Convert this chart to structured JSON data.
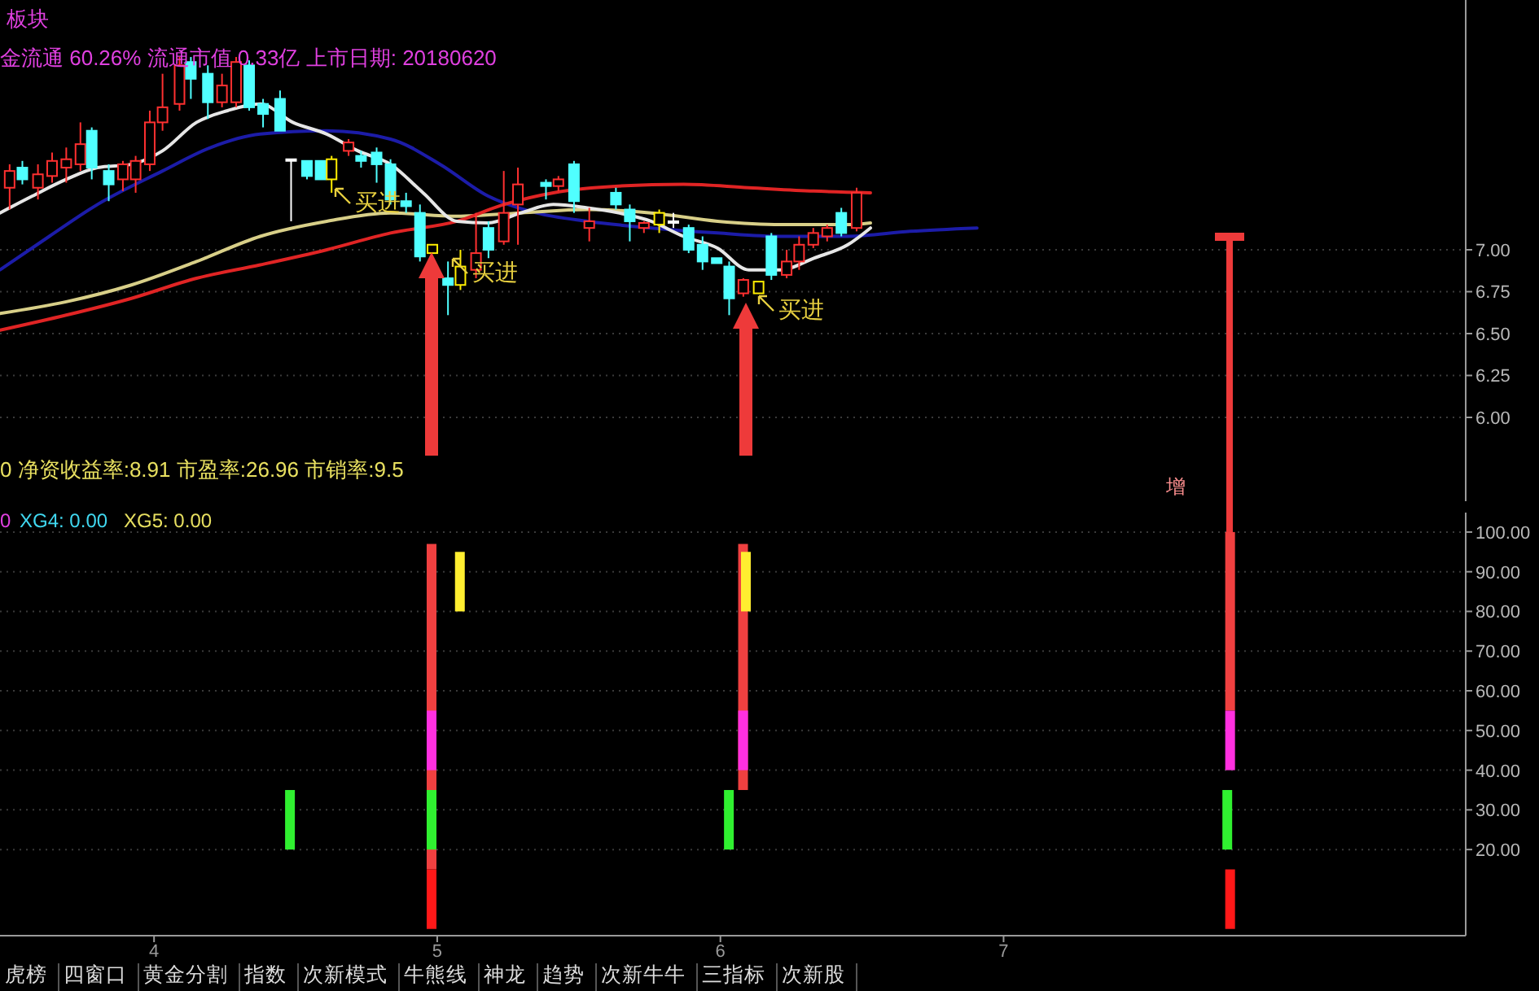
{
  "chart_data": [
    {
      "type": "candlestick",
      "xlim": [
        3.456,
        8.632
      ],
      "ylim": [
        5.5,
        8.49
      ],
      "yticks": [
        {
          "value": 7,
          "label": "7.00"
        },
        {
          "value": 6.75,
          "label": "6.75"
        },
        {
          "value": 6.5,
          "label": "6.50"
        },
        {
          "value": 6.25,
          "label": "6.25"
        },
        {
          "value": 6,
          "label": "6.00"
        }
      ],
      "grid": "y",
      "tick_labels": "y",
      "x": [
        3.49,
        3.535,
        3.59,
        3.64,
        3.69,
        3.74,
        3.78,
        3.84,
        3.89,
        3.935,
        3.985,
        4.03,
        4.09,
        4.13,
        4.19,
        4.24,
        4.29,
        4.336,
        4.385,
        4.445,
        4.484,
        4.54,
        4.588,
        4.627,
        4.687,
        4.731,
        4.786,
        4.835,
        4.89,
        4.939,
        4.983,
        5.038,
        5.082,
        5.137,
        5.181,
        5.235,
        5.285,
        5.384,
        5.428,
        5.483,
        5.537,
        5.631,
        5.68,
        5.73,
        5.784,
        5.834,
        5.888,
        5.937,
        5.987,
        6.031,
        6.081,
        6.135,
        6.18,
        6.234,
        6.278,
        6.328,
        6.377,
        6.427,
        6.481
      ],
      "ohlc": [
        [
          7.37,
          7.51,
          7.24,
          7.47
        ],
        [
          7.49,
          7.53,
          7.39,
          7.42
        ],
        [
          7.37,
          7.51,
          7.3,
          7.45
        ],
        [
          7.44,
          7.58,
          7.4,
          7.53
        ],
        [
          7.49,
          7.61,
          7.4,
          7.54
        ],
        [
          7.51,
          7.76,
          7.47,
          7.63
        ],
        [
          7.71,
          7.73,
          7.42,
          7.49
        ],
        [
          7.47,
          7.51,
          7.29,
          7.39
        ],
        [
          7.42,
          7.53,
          7.35,
          7.51
        ],
        [
          7.42,
          7.56,
          7.34,
          7.53
        ],
        [
          7.51,
          7.83,
          7.47,
          7.76
        ],
        [
          7.76,
          8.05,
          7.71,
          7.85
        ],
        [
          7.87,
          8.15,
          7.83,
          8.1
        ],
        [
          8.12,
          8.15,
          7.9,
          8.02
        ],
        [
          8.05,
          8.1,
          7.78,
          7.88
        ],
        [
          7.88,
          8.05,
          7.85,
          7.98
        ],
        [
          7.88,
          8.15,
          7.85,
          8.12
        ],
        [
          8.1,
          8.13,
          7.83,
          7.85
        ],
        [
          7.87,
          7.9,
          7.73,
          7.81
        ],
        [
          7.9,
          7.95,
          7.71,
          7.71
        ],
        [
          7.54,
          7.54,
          7.17,
          7.54
        ],
        [
          7.53,
          7.53,
          7.42,
          7.44
        ],
        [
          7.53,
          7.53,
          7.42,
          7.42
        ],
        [
          7.42,
          7.56,
          7.34,
          7.54
        ],
        [
          7.59,
          7.66,
          7.56,
          7.64
        ],
        [
          7.56,
          7.59,
          7.49,
          7.53
        ],
        [
          7.58,
          7.61,
          7.4,
          7.51
        ],
        [
          7.51,
          7.54,
          7.27,
          7.3
        ],
        [
          7.29,
          7.34,
          7.22,
          7.26
        ],
        [
          7.22,
          7.27,
          6.93,
          6.96
        ],
        [
          6.98,
          7.03,
          6.98,
          7.03
        ],
        [
          6.83,
          6.93,
          6.61,
          6.79
        ],
        [
          6.79,
          7.0,
          6.76,
          6.9
        ],
        [
          6.88,
          7.22,
          6.83,
          6.98
        ],
        [
          7.13,
          7.17,
          6.95,
          7.0
        ],
        [
          7.05,
          7.47,
          7.03,
          7.22
        ],
        [
          7.27,
          7.49,
          7.03,
          7.39
        ],
        [
          7.4,
          7.42,
          7.3,
          7.38
        ],
        [
          7.38,
          7.44,
          7.35,
          7.42
        ],
        [
          7.51,
          7.53,
          7.22,
          7.29
        ],
        [
          7.13,
          7.25,
          7.05,
          7.17
        ],
        [
          7.34,
          7.37,
          7.24,
          7.27
        ],
        [
          7.24,
          7.27,
          7.05,
          7.17
        ],
        [
          7.13,
          7.17,
          7.1,
          7.16
        ],
        [
          7.15,
          7.24,
          7.1,
          7.22
        ],
        [
          7.17,
          7.22,
          7.13,
          7.17
        ],
        [
          7.13,
          7.15,
          6.98,
          7.0
        ],
        [
          7.03,
          7.08,
          6.88,
          6.93
        ],
        [
          6.95,
          6.95,
          6.92,
          6.92
        ],
        [
          6.9,
          6.93,
          6.61,
          6.71
        ],
        [
          6.74,
          6.83,
          6.72,
          6.82
        ],
        [
          6.74,
          6.81,
          6.74,
          6.81
        ],
        [
          7.08,
          7.1,
          6.82,
          6.85
        ],
        [
          6.85,
          7.0,
          6.83,
          6.93
        ],
        [
          6.93,
          7.08,
          6.88,
          7.03
        ],
        [
          7.03,
          7.13,
          7.01,
          7.1
        ],
        [
          7.08,
          7.15,
          7.05,
          7.13
        ],
        [
          7.22,
          7.25,
          7.08,
          7.1
        ],
        [
          7.13,
          7.37,
          7.11,
          7.34
        ]
      ],
      "colors": [
        "#ff3030",
        "#50ffff",
        "#ff3030",
        "#ff3030",
        "#ff3030",
        "#ff3030",
        "#50ffff",
        "#50ffff",
        "#ff3030",
        "#ff3030",
        "#ff3030",
        "#ff3030",
        "#ff3030",
        "#50ffff",
        "#50ffff",
        "#ff3030",
        "#ff3030",
        "#50ffff",
        "#50ffff",
        "#50ffff",
        "#ffffff",
        "#50ffff",
        "#50ffff",
        "#ffee00",
        "#ff3030",
        "#50ffff",
        "#50ffff",
        "#50ffff",
        "#50ffff",
        "#50ffff",
        "#ffee00",
        "#50ffff",
        "#ffee00",
        "#ff3030",
        "#50ffff",
        "#ff3030",
        "#ff3030",
        "#50ffff",
        "#ff3030",
        "#50ffff",
        "#ff3030",
        "#50ffff",
        "#50ffff",
        "#ff3030",
        "#ffee00",
        "#ffffff",
        "#50ffff",
        "#50ffff",
        "#50ffff",
        "#50ffff",
        "#ff3030",
        "#ffee00",
        "#50ffff",
        "#ff3030",
        "#ff3030",
        "#ff3030",
        "#ff3030",
        "#50ffff",
        "#ff3030"
      ],
      "series": [
        {
          "type": "line",
          "color": "#1c1ca8",
          "x": [
            3.456,
            3.63,
            3.8,
            4.03,
            4.2,
            4.375,
            4.61,
            4.835,
            5.01,
            5.18,
            5.35,
            5.53,
            5.755,
            5.99,
            6.214,
            6.45,
            6.67,
            6.906
          ],
          "values": [
            6.88,
            7.08,
            7.27,
            7.47,
            7.61,
            7.69,
            7.71,
            7.66,
            7.51,
            7.32,
            7.22,
            7.17,
            7.13,
            7.1,
            7.08,
            7.08,
            7.11,
            7.13
          ]
        },
        {
          "type": "line",
          "color": "#d8cf88",
          "x": [
            3.456,
            3.69,
            3.92,
            4.15,
            4.375,
            4.61,
            4.835,
            5.07,
            5.295,
            5.53,
            5.755,
            5.99,
            6.214,
            6.45,
            6.53
          ],
          "values": [
            6.62,
            6.69,
            6.79,
            6.93,
            7.08,
            7.17,
            7.22,
            7.2,
            7.22,
            7.24,
            7.22,
            7.17,
            7.15,
            7.15,
            7.16
          ]
        },
        {
          "type": "line",
          "color": "#e02424",
          "x": [
            3.456,
            3.69,
            3.92,
            4.15,
            4.375,
            4.61,
            4.835,
            5.07,
            5.235,
            5.41,
            5.64,
            5.87,
            6.1,
            6.33,
            6.53
          ],
          "values": [
            6.52,
            6.61,
            6.71,
            6.83,
            6.91,
            7.0,
            7.1,
            7.17,
            7.27,
            7.34,
            7.38,
            7.39,
            7.37,
            7.35,
            7.34
          ]
        },
        {
          "type": "line",
          "color": "#e6e6e6",
          "x": [
            3.456,
            3.57,
            3.69,
            3.8,
            3.92,
            4.03,
            4.15,
            4.26,
            4.375,
            4.49,
            4.61,
            4.72,
            4.835,
            4.95,
            5.07,
            5.18,
            5.295,
            5.41,
            5.53,
            5.64,
            5.755,
            5.87,
            5.99,
            6.1,
            6.214,
            6.33,
            6.45,
            6.53
          ],
          "values": [
            7.22,
            7.32,
            7.42,
            7.49,
            7.51,
            7.59,
            7.76,
            7.83,
            7.87,
            7.76,
            7.69,
            7.59,
            7.51,
            7.34,
            7.17,
            7.16,
            7.22,
            7.27,
            7.25,
            7.22,
            7.17,
            7.08,
            7.01,
            6.88,
            6.88,
            6.95,
            7.03,
            7.13
          ]
        }
      ],
      "annotations": [
        "板块",
        "金流通 60.26% 流通市值 0.33亿 上市日期: 20180620",
        "0 净资收益率:8.91 市盈率:26.96 市销率:9.5",
        "增",
        "买进",
        "买进",
        "买进"
      ]
    },
    {
      "type": "bar",
      "xlim": [
        3.456,
        8.632
      ],
      "ylim": [
        -1.7,
        104.9
      ],
      "xticks": [
        {
          "value": 4,
          "label": "4"
        },
        {
          "value": 5,
          "label": "5"
        },
        {
          "value": 6,
          "label": "6"
        },
        {
          "value": 7,
          "label": "7"
        }
      ],
      "yticks": [
        {
          "value": 100,
          "label": "100.00"
        },
        {
          "value": 90,
          "label": "90.00"
        },
        {
          "value": 80,
          "label": "80.00"
        },
        {
          "value": 70,
          "label": "70.00"
        },
        {
          "value": 60,
          "label": "60.00"
        },
        {
          "value": 50,
          "label": "50.00"
        },
        {
          "value": 40,
          "label": "40.00"
        },
        {
          "value": 30,
          "label": "30.00"
        },
        {
          "value": 20,
          "label": "20.00"
        }
      ],
      "grid": "y",
      "series": [
        {
          "color": "#f04040",
          "x": [
            4.98,
            6.08,
            7.8
          ],
          "base": [
            15,
            35,
            55
          ],
          "values": [
            82,
            62,
            45
          ]
        },
        {
          "color": "#ffee30",
          "x": [
            5.08,
            6.09
          ],
          "base": [
            80,
            80
          ],
          "values": [
            15,
            15
          ]
        },
        {
          "color": "#ff30e0",
          "x": [
            4.98,
            6.08,
            7.8
          ],
          "base": [
            40,
            40,
            40
          ],
          "values": [
            15,
            15,
            15
          ]
        },
        {
          "color": "#30f030",
          "x": [
            4.48,
            4.98,
            6.03,
            7.79
          ],
          "base": [
            20,
            20,
            20,
            20
          ],
          "values": [
            15,
            15,
            15,
            15
          ]
        },
        {
          "color": "#ff1818",
          "x": [
            4.98,
            7.8
          ],
          "base": [
            0,
            0
          ],
          "values": [
            15,
            15
          ]
        }
      ],
      "annotations": [
        "0",
        "XG4: 0.00",
        "XG5: 0.00",
        "虎榜",
        "四窗口",
        "黄金分割",
        "指数",
        "次新模式",
        "牛熊线",
        "神龙",
        "趋势",
        "次新牛牛",
        "三指标",
        "次新股"
      ]
    }
  ]
}
